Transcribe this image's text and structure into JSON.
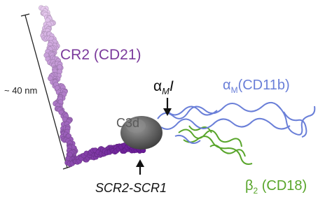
{
  "labels": {
    "cr2": "CR2 (CD21)",
    "scale": "~ 40 nm",
    "c3d": "C3d",
    "am_i": {
      "symbol": "α",
      "subscript": "M",
      "suffix": "I"
    },
    "am_cd11b": {
      "symbol": "α",
      "subscript": "M",
      "suffix": "(CD11b)"
    },
    "scr": "SCR2-SCR1",
    "b2": {
      "symbol": "β",
      "subscript": "2",
      "suffix": " (CD18)"
    }
  }
}
